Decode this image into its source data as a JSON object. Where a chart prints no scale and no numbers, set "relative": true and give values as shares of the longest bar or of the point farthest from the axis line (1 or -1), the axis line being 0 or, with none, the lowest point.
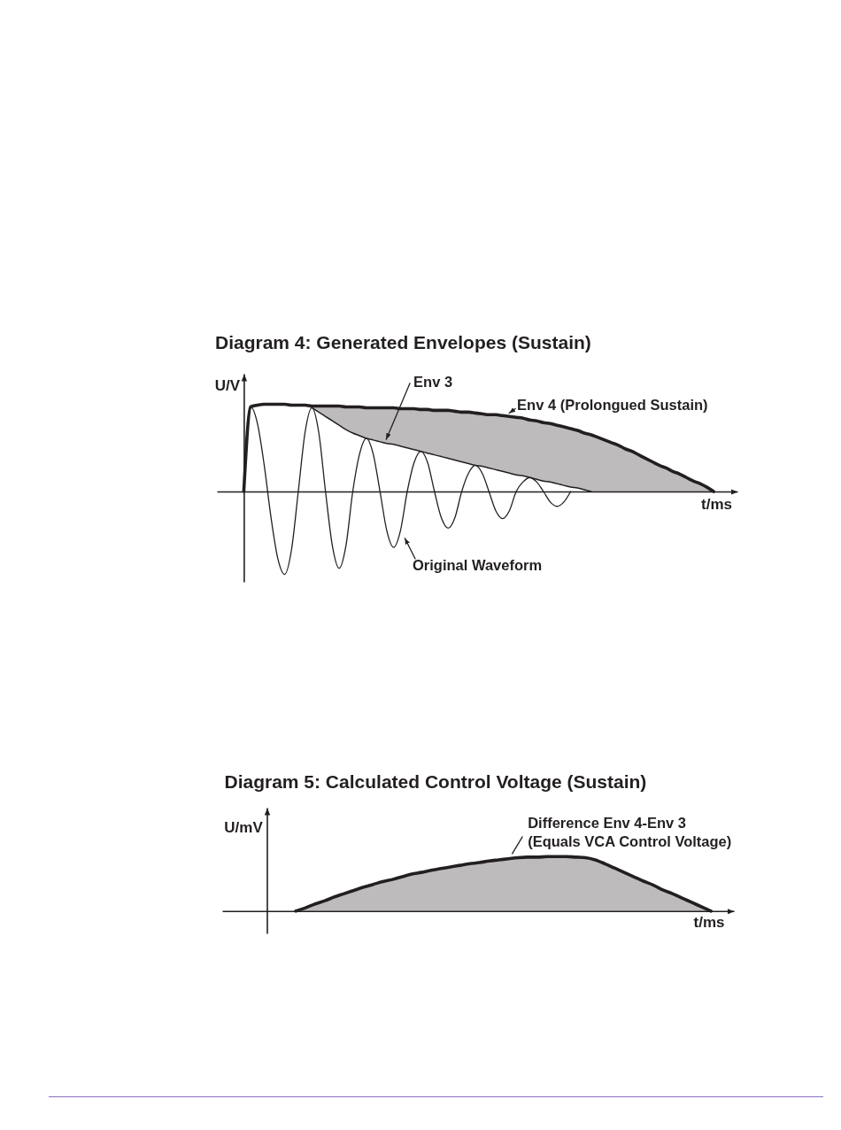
{
  "chart_data": [
    {
      "type": "line",
      "title": "Diagram 4: Generated Envelopes (Sustain)",
      "xlabel": "t/ms",
      "ylabel": "U/V",
      "relative": true,
      "categories": [
        null,
        null,
        null,
        null,
        null,
        null,
        null,
        null,
        null,
        null,
        null,
        null,
        null,
        null,
        null,
        null,
        null,
        null,
        null,
        null,
        null,
        null,
        null,
        null,
        null,
        null,
        null,
        null,
        null,
        null,
        null,
        null,
        null,
        null,
        null,
        null,
        null,
        null,
        null,
        null,
        null,
        null,
        null,
        null,
        null,
        null,
        null,
        null,
        null,
        null,
        null,
        null,
        null,
        null,
        null,
        null,
        null,
        null,
        null,
        null,
        null,
        null,
        null,
        null,
        null,
        null,
        null,
        null,
        null,
        null
      ],
      "series": [
        {
          "name": "Original Waveform",
          "color": "#231f20",
          "values": [
            0,
            0.97,
            0.78,
            0.3,
            -0.3,
            -0.77,
            -0.95,
            -0.67,
            0,
            0.68,
            0.96,
            0.68,
            0,
            -0.62,
            -0.88,
            -0.62,
            0,
            0.43,
            0.61,
            0.43,
            0,
            -0.45,
            -0.64,
            -0.45,
            0,
            0.33,
            0.46,
            0.33,
            0,
            -0.3,
            -0.42,
            -0.3,
            0,
            0.21,
            0.3,
            0.21,
            0,
            -0.22,
            -0.31,
            -0.22,
            0,
            0.11,
            0.16,
            0.11,
            0,
            -0.12,
            -0.17,
            -0.12,
            0,
            null,
            null,
            null,
            null,
            null,
            null,
            null,
            null,
            null,
            null,
            null,
            null,
            null,
            null,
            null,
            null,
            null,
            null,
            null,
            null,
            null
          ]
        },
        {
          "name": "Env 3",
          "color": "#231f20",
          "values": [
            null,
            null,
            null,
            null,
            null,
            null,
            null,
            null,
            null,
            null,
            0.96,
            0.91,
            0.86,
            0.81,
            0.76,
            0.71,
            0.67,
            0.64,
            0.61,
            0.59,
            0.57,
            0.55,
            0.54,
            0.52,
            0.5,
            0.48,
            0.46,
            0.44,
            0.42,
            0.4,
            0.38,
            0.36,
            0.34,
            0.32,
            0.3,
            0.29,
            0.27,
            0.25,
            0.23,
            0.21,
            0.19,
            0.18,
            0.16,
            0.14,
            0.12,
            0.11,
            0.09,
            0.07,
            0.05,
            0.04,
            0.02,
            0,
            null,
            null,
            null,
            null,
            null,
            null,
            null,
            null,
            null,
            null,
            null,
            null,
            null,
            null,
            null,
            null,
            null,
            null
          ]
        },
        {
          "name": "Env 4 (Prolongued Sustain)",
          "color": "#231f20",
          "values": [
            0,
            0.97,
            0.99,
            1,
            1,
            1,
            1,
            0.99,
            0.99,
            0.99,
            0.98,
            0.98,
            0.98,
            0.98,
            0.98,
            0.97,
            0.97,
            0.97,
            0.96,
            0.96,
            0.96,
            0.96,
            0.96,
            0.95,
            0.95,
            0.95,
            0.94,
            0.94,
            0.93,
            0.93,
            0.93,
            0.92,
            0.91,
            0.91,
            0.9,
            0.89,
            0.88,
            0.88,
            0.87,
            0.86,
            0.85,
            0.84,
            0.82,
            0.81,
            0.79,
            0.78,
            0.76,
            0.74,
            0.72,
            0.7,
            0.67,
            0.65,
            0.62,
            0.59,
            0.56,
            0.53,
            0.49,
            0.46,
            0.42,
            0.38,
            0.34,
            0.3,
            0.27,
            0.23,
            0.2,
            0.16,
            0.12,
            0.09,
            0.05,
            0
          ],
          "lower": [
            null,
            null,
            null,
            null,
            null,
            null,
            null,
            null,
            null,
            null,
            0.96,
            0.91,
            0.86,
            0.81,
            0.76,
            0.71,
            0.67,
            0.64,
            0.61,
            0.59,
            0.57,
            0.55,
            0.54,
            0.52,
            0.5,
            0.48,
            0.46,
            0.44,
            0.42,
            0.4,
            0.38,
            0.36,
            0.34,
            0.32,
            0.3,
            0.29,
            0.27,
            0.25,
            0.23,
            0.21,
            0.19,
            0.18,
            0.16,
            0.14,
            0.12,
            0.11,
            0.09,
            0.07,
            0.05,
            0.04,
            0.02,
            0,
            0,
            0,
            0,
            0,
            0,
            0,
            0,
            0,
            0,
            0,
            0,
            0,
            0,
            0,
            0,
            0,
            0,
            0
          ],
          "upper": [
            null,
            null,
            null,
            null,
            null,
            null,
            null,
            null,
            null,
            null,
            0.98,
            0.98,
            0.98,
            0.98,
            0.98,
            0.97,
            0.97,
            0.97,
            0.96,
            0.96,
            0.96,
            0.96,
            0.96,
            0.95,
            0.95,
            0.95,
            0.94,
            0.94,
            0.93,
            0.93,
            0.93,
            0.92,
            0.91,
            0.91,
            0.9,
            0.89,
            0.88,
            0.88,
            0.87,
            0.86,
            0.85,
            0.84,
            0.82,
            0.81,
            0.79,
            0.78,
            0.76,
            0.74,
            0.72,
            0.7,
            0.67,
            0.65,
            0.62,
            0.59,
            0.56,
            0.53,
            0.49,
            0.46,
            0.42,
            0.38,
            0.34,
            0.3,
            0.27,
            0.23,
            0.2,
            0.16,
            0.12,
            0.09,
            0.05,
            0
          ]
        }
      ]
    },
    {
      "type": "area",
      "title": "Diagram 5: Calculated Control Voltage (Sustain)",
      "xlabel": "t/ms",
      "ylabel": "U/mV",
      "relative": true,
      "categories": [
        null,
        null,
        null,
        null,
        null,
        null,
        null,
        null,
        null,
        null,
        null,
        null,
        null,
        null,
        null,
        null,
        null,
        null,
        null,
        null,
        null,
        null,
        null,
        null,
        null,
        null,
        null,
        null,
        null,
        null,
        null,
        null,
        null,
        null,
        null,
        null,
        null,
        null,
        null,
        null,
        null,
        null,
        null,
        null,
        null,
        null,
        null
      ],
      "series": [
        {
          "name": "Difference Env 4-Env 3 (Equals VCA Control Voltage)",
          "color": "#231f20",
          "values": [
            null,
            null,
            null,
            0,
            0.06,
            0.13,
            0.19,
            0.26,
            0.32,
            0.38,
            0.44,
            0.49,
            0.54,
            0.58,
            0.63,
            0.68,
            0.71,
            0.75,
            0.78,
            0.81,
            0.84,
            0.87,
            0.89,
            0.92,
            0.94,
            0.96,
            0.98,
            0.99,
            0.99,
            1,
            1,
            1,
            0.99,
            0.98,
            0.94,
            0.87,
            0.79,
            0.71,
            0.63,
            0.55,
            0.48,
            0.39,
            0.32,
            0.24,
            0.16,
            0.08,
            0
          ]
        }
      ]
    }
  ]
}
